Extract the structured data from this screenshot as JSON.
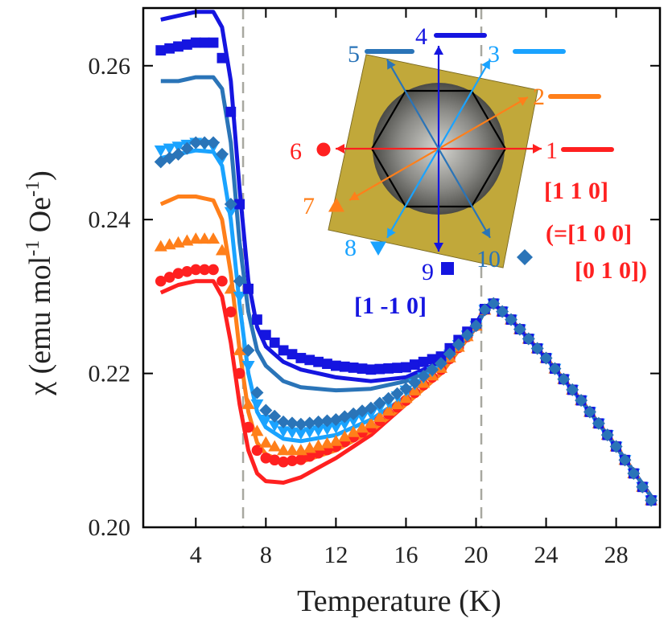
{
  "chart_data": {
    "type": "line",
    "xlabel": "Temperature (K)",
    "ylabel": "χ (emu mol⁻¹ Oe⁻¹)",
    "ylabel_parts": {
      "chi": "χ",
      "open": " (emu mol",
      "m1": "-1",
      "oe": " Oe",
      "m2": "-1",
      "close": ")"
    },
    "xlim": [
      1,
      30.5
    ],
    "ylim": [
      0.2,
      0.2675
    ],
    "xticks": [
      4,
      8,
      12,
      16,
      20,
      24,
      28
    ],
    "yticks": [
      0.2,
      0.22,
      0.24,
      0.26
    ],
    "ytick_labels": [
      "0.20",
      "0.22",
      "0.24",
      "0.26"
    ],
    "vlines": [
      6.7,
      20.3
    ],
    "x": [
      2,
      3,
      4,
      5,
      5.5,
      6,
      6.5,
      7,
      7.5,
      8,
      9,
      10,
      12,
      14,
      16,
      18,
      20,
      20.8,
      22,
      24,
      26,
      28,
      30
    ],
    "series": [
      {
        "name": "1",
        "style": "line",
        "color": "#ff2020",
        "values": [
          0.2305,
          0.2315,
          0.232,
          0.232,
          0.23,
          0.224,
          0.216,
          0.21,
          0.207,
          0.206,
          0.2058,
          0.2065,
          0.209,
          0.212,
          0.216,
          0.22,
          0.226,
          0.2295,
          0.227,
          0.222,
          0.2165,
          0.2105,
          0.204
        ]
      },
      {
        "name": "2",
        "style": "line",
        "color": "#ff7f1a",
        "values": [
          0.242,
          0.243,
          0.243,
          0.2425,
          0.24,
          0.233,
          0.223,
          0.215,
          0.211,
          0.2095,
          0.2085,
          0.2085,
          0.21,
          0.2125,
          0.216,
          0.22,
          0.226,
          0.2295,
          0.227,
          0.222,
          0.2165,
          0.2105,
          0.204
        ]
      },
      {
        "name": "3",
        "style": "line",
        "color": "#1aa3ff",
        "values": [
          0.248,
          0.2485,
          0.249,
          0.2488,
          0.247,
          0.24,
          0.229,
          0.22,
          0.215,
          0.213,
          0.2115,
          0.2112,
          0.212,
          0.214,
          0.217,
          0.221,
          0.226,
          0.2295,
          0.227,
          0.222,
          0.2165,
          0.2105,
          0.204
        ]
      },
      {
        "name": "4",
        "style": "line",
        "color": "#1515e0",
        "values": [
          0.266,
          0.2665,
          0.267,
          0.267,
          0.265,
          0.258,
          0.244,
          0.232,
          0.226,
          0.2235,
          0.2215,
          0.2205,
          0.2195,
          0.219,
          0.2195,
          0.2215,
          0.2265,
          0.2295,
          0.227,
          0.222,
          0.2165,
          0.2105,
          0.204
        ]
      },
      {
        "name": "5",
        "style": "line",
        "color": "#2a74b8",
        "values": [
          0.258,
          0.258,
          0.2585,
          0.2585,
          0.257,
          0.25,
          0.237,
          0.228,
          0.223,
          0.221,
          0.219,
          0.2182,
          0.2178,
          0.218,
          0.219,
          0.221,
          0.226,
          0.2295,
          0.227,
          0.222,
          0.2165,
          0.2105,
          0.204
        ]
      },
      {
        "name": "6",
        "style": "circle",
        "color": "#ff2020",
        "values": [
          0.232,
          0.233,
          0.2335,
          0.2335,
          0.232,
          0.228,
          0.22,
          0.213,
          0.21,
          0.209,
          0.2085,
          0.2088,
          0.2105,
          0.213,
          0.2165,
          0.2205,
          0.2262,
          0.2295,
          0.227,
          0.222,
          0.2165,
          0.2105,
          0.2035
        ]
      },
      {
        "name": "7",
        "style": "triangle-up",
        "color": "#ff7f1a",
        "values": [
          0.2365,
          0.237,
          0.2375,
          0.2375,
          0.236,
          0.231,
          0.223,
          0.216,
          0.2125,
          0.211,
          0.21,
          0.21,
          0.2112,
          0.2135,
          0.2168,
          0.2207,
          0.2262,
          0.2295,
          0.227,
          0.222,
          0.2165,
          0.2105,
          0.2035
        ]
      },
      {
        "name": "8",
        "style": "triangle-down",
        "color": "#1aa3ff",
        "values": [
          0.249,
          0.2495,
          0.25,
          0.2495,
          0.248,
          0.241,
          0.23,
          0.221,
          0.216,
          0.214,
          0.2125,
          0.2122,
          0.213,
          0.2148,
          0.2178,
          0.2212,
          0.2262,
          0.2295,
          0.227,
          0.222,
          0.2165,
          0.2105,
          0.2035
        ]
      },
      {
        "name": "9",
        "style": "square",
        "color": "#1515e0",
        "values": [
          0.262,
          0.2625,
          0.263,
          0.263,
          0.261,
          0.254,
          0.242,
          0.231,
          0.227,
          0.225,
          0.223,
          0.222,
          0.221,
          0.2205,
          0.2208,
          0.2222,
          0.2265,
          0.2295,
          0.227,
          0.222,
          0.2165,
          0.2105,
          0.2035
        ]
      },
      {
        "name": "10",
        "style": "diamond",
        "color": "#2a74b8",
        "values": [
          0.2475,
          0.2485,
          0.25,
          0.25,
          0.2485,
          0.242,
          0.232,
          0.223,
          0.2175,
          0.2152,
          0.2137,
          0.2134,
          0.214,
          0.2155,
          0.218,
          0.2213,
          0.2262,
          0.2295,
          0.227,
          0.222,
          0.2165,
          0.2105,
          0.2035
        ]
      }
    ],
    "inset": {
      "directions": [
        {
          "id": "1",
          "color": "#ff2020"
        },
        {
          "id": "2",
          "color": "#ff7f1a"
        },
        {
          "id": "3",
          "color": "#1aa3ff"
        },
        {
          "id": "4",
          "color": "#1515e0"
        },
        {
          "id": "5",
          "color": "#2a74b8"
        },
        {
          "id": "6",
          "color": "#ff2020"
        },
        {
          "id": "7",
          "color": "#ff7f1a"
        },
        {
          "id": "8",
          "color": "#1aa3ff"
        },
        {
          "id": "9",
          "color": "#1515e0"
        },
        {
          "id": "10",
          "color": "#2a74b8"
        }
      ],
      "label_110": "[1 1 0]",
      "label_100": "(=[1 0 0]",
      "label_010": "[0 1 0])",
      "label_1m10": "[1 -1 0]"
    }
  }
}
